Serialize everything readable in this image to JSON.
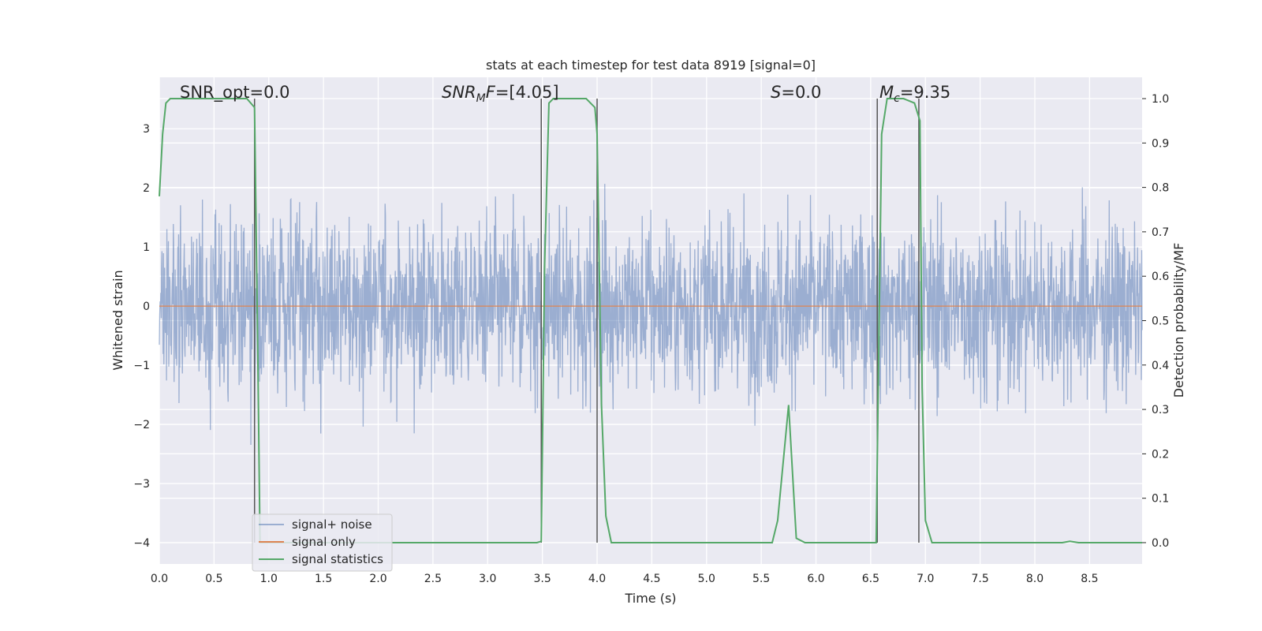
{
  "chart_data": {
    "type": "line",
    "title": "stats at each timestep for test data 8919 [signal=0]",
    "xlabel": "Time (s)",
    "ylabel_left": "Whitened strain",
    "ylabel_right": "Detection probability/MF",
    "xlim": [
      0,
      8.98
    ],
    "ylim_left": [
      -4.36,
      3.87
    ],
    "ylim_right": [
      -0.048,
      1.048
    ],
    "x_ticks": [
      0.0,
      0.5,
      1.0,
      1.5,
      2.0,
      2.5,
      3.0,
      3.5,
      4.0,
      4.5,
      5.0,
      5.5,
      6.0,
      6.5,
      7.0,
      7.5,
      8.0,
      8.5
    ],
    "x_tick_labels": [
      "0.0",
      "0.5",
      "1.0",
      "1.5",
      "2.0",
      "2.5",
      "3.0",
      "3.5",
      "4.0",
      "4.5",
      "5.0",
      "5.5",
      "6.0",
      "6.5",
      "7.0",
      "7.5",
      "8.0",
      "8.5"
    ],
    "y_left_ticks": [
      3,
      2,
      1,
      0,
      -1,
      -2,
      -3,
      -4
    ],
    "y_left_tick_labels": [
      "3",
      "2",
      "1",
      "0",
      "−1",
      "−2",
      "−3",
      "−4"
    ],
    "y_right_ticks": [
      1.0,
      0.9,
      0.8,
      0.7,
      0.6,
      0.5,
      0.4,
      0.3,
      0.2,
      0.1,
      0.0
    ],
    "y_right_tick_labels": [
      "1.0",
      "0.9",
      "0.8",
      "0.7",
      "0.6",
      "0.5",
      "0.4",
      "0.3",
      "0.2",
      "0.1",
      "0.0"
    ],
    "grid": true,
    "legend_position": "lower-left",
    "colors": {
      "background": "#eaeaf2",
      "grid": "#ffffff",
      "noise": "#4c72b0",
      "signal": "#dd8452",
      "stats": "#55a868",
      "vlines": "#555555"
    },
    "annotations": {
      "snr_opt": "SNR_opt=0.0",
      "snr_mf_label": "SNR",
      "snr_mf_sub": "M",
      "snr_mf_tail": "F",
      "snr_mf_value": "=[4.05]",
      "s_label": "S",
      "s_value": "=0.0",
      "mc_label": "M",
      "mc_sub": "c",
      "mc_value": "=9.35"
    },
    "series": [
      {
        "name": "signal+ noise",
        "axis": "left",
        "note_style": "dense noise trace"
      },
      {
        "name": "signal only",
        "axis": "left",
        "x": [
          0,
          8.98
        ],
        "y": [
          0,
          0
        ]
      },
      {
        "name": "signal statistics",
        "axis": "right",
        "x": [
          0.0,
          0.03,
          0.06,
          0.1,
          0.15,
          0.5,
          0.8,
          0.87,
          0.9,
          0.92,
          0.95,
          1.0,
          3.45,
          3.49,
          3.52,
          3.56,
          3.6,
          3.7,
          3.9,
          3.98,
          4.0,
          4.04,
          4.08,
          4.13,
          4.2,
          5.6,
          5.65,
          5.75,
          5.82,
          5.9,
          6.55,
          6.6,
          6.65,
          6.72,
          6.8,
          6.9,
          6.95,
          6.97,
          7.0,
          7.06,
          7.15,
          8.25,
          8.32,
          8.4,
          8.98
        ],
        "y": [
          0.78,
          0.92,
          0.99,
          1.0,
          1.0,
          1.0,
          1.0,
          0.98,
          0.42,
          0.0,
          0.0,
          0.0,
          0.0,
          0.003,
          0.62,
          0.99,
          1.0,
          1.0,
          1.0,
          0.98,
          0.92,
          0.31,
          0.06,
          0.0,
          0.0,
          0.0,
          0.05,
          0.31,
          0.01,
          0.0,
          0.0,
          0.92,
          1.0,
          1.0,
          1.0,
          0.99,
          0.95,
          0.35,
          0.05,
          0.0,
          0.0,
          0.0,
          0.003,
          0.0,
          0.0
        ]
      }
    ],
    "vlines": [
      0.87,
      3.49,
      4.0,
      6.56,
      6.94
    ]
  }
}
